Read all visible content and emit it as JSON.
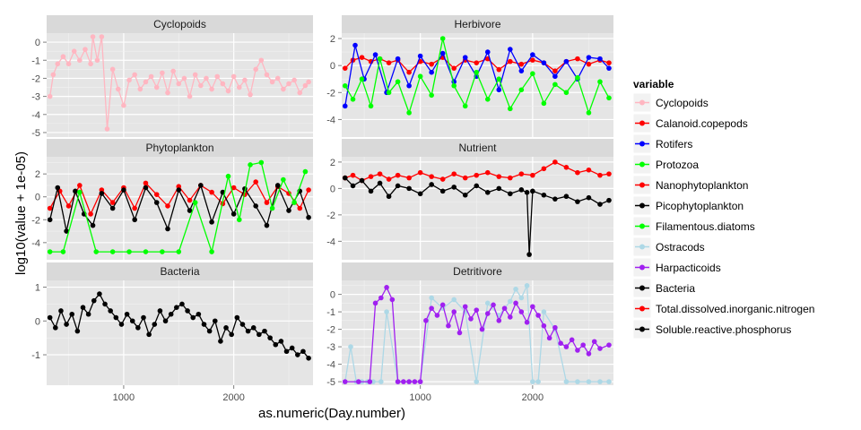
{
  "figure": {
    "xlabel": "as.numeric(Day.number)",
    "ylabel": "log10(value + 1e-05)",
    "legend_title": "variable"
  },
  "legend": [
    {
      "label": "Cyclopoids",
      "color": "#FFB6C1"
    },
    {
      "label": "Calanoid.copepods",
      "color": "#FF0000"
    },
    {
      "label": "Rotifers",
      "color": "#0000FF"
    },
    {
      "label": "Protozoa",
      "color": "#00FF00"
    },
    {
      "label": "Nanophytoplankton",
      "color": "#FF0000"
    },
    {
      "label": "Picophytoplankton",
      "color": "#000000"
    },
    {
      "label": "Filamentous.diatoms",
      "color": "#00FF00"
    },
    {
      "label": "Ostracods",
      "color": "#ADD8E6"
    },
    {
      "label": "Harpacticoids",
      "color": "#A020F0"
    },
    {
      "label": "Bacteria",
      "color": "#000000"
    },
    {
      "label": "Total.dissolved.inorganic.nitrogen",
      "color": "#FF0000"
    },
    {
      "label": "Soluble.reactive.phosphorus",
      "color": "#000000"
    }
  ],
  "chart_data": [
    {
      "type": "line",
      "facet": "Cyclopoids",
      "xlim": [
        300,
        2720
      ],
      "ylim": [
        -5.25,
        0.5
      ],
      "xticks": [
        1000,
        2000
      ],
      "yticks": [
        0,
        -1,
        -2,
        -3,
        -4,
        -5
      ],
      "series": [
        {
          "name": "Cyclopoids",
          "color": "#FFB6C1",
          "x": [
            330,
            360,
            400,
            450,
            500,
            550,
            600,
            650,
            700,
            720,
            760,
            800,
            850,
            900,
            950,
            1000,
            1050,
            1100,
            1150,
            1200,
            1250,
            1300,
            1350,
            1400,
            1450,
            1500,
            1550,
            1600,
            1650,
            1700,
            1750,
            1800,
            1850,
            1900,
            1950,
            2000,
            2050,
            2100,
            2150,
            2200,
            2250,
            2300,
            2350,
            2400,
            2450,
            2500,
            2550,
            2600,
            2650,
            2680
          ],
          "y": [
            -3.0,
            -1.8,
            -1.2,
            -0.8,
            -1.2,
            -0.5,
            -1.0,
            -0.4,
            -1.2,
            0.3,
            -1.0,
            0.3,
            -4.8,
            -1.5,
            -2.6,
            -3.5,
            -2.1,
            -1.8,
            -2.6,
            -2.2,
            -1.9,
            -2.5,
            -1.7,
            -2.8,
            -1.6,
            -2.3,
            -2.0,
            -3.0,
            -1.8,
            -2.4,
            -2.0,
            -2.6,
            -1.9,
            -2.3,
            -2.7,
            -1.9,
            -2.5,
            -2.1,
            -2.9,
            -1.5,
            -1.0,
            -1.8,
            -2.2,
            -2.0,
            -2.6,
            -2.3,
            -2.1,
            -2.8,
            -2.4,
            -2.2
          ]
        }
      ]
    },
    {
      "type": "line",
      "facet": "Herbivore",
      "xlim": [
        300,
        2720
      ],
      "ylim": [
        -5.3,
        2.4
      ],
      "xticks": [
        1000,
        2000
      ],
      "yticks": [
        2,
        0,
        -2,
        -4
      ],
      "series": [
        {
          "name": "Calanoid.copepods",
          "color": "#FF0000",
          "x": [
            330,
            400,
            480,
            560,
            640,
            720,
            800,
            900,
            1000,
            1100,
            1200,
            1300,
            1400,
            1500,
            1600,
            1700,
            1800,
            1900,
            2000,
            2100,
            2200,
            2300,
            2400,
            2500,
            2600,
            2680
          ],
          "y": [
            -0.2,
            0.4,
            0.6,
            0.3,
            0.5,
            0.2,
            0.4,
            -0.5,
            0.3,
            0.1,
            0.6,
            -0.2,
            0.4,
            0.2,
            0.5,
            -0.3,
            0.3,
            0.1,
            0.4,
            0.2,
            -0.4,
            0.3,
            0.5,
            0.1,
            0.4,
            0.2
          ]
        },
        {
          "name": "Rotifers",
          "color": "#0000FF",
          "x": [
            330,
            420,
            500,
            600,
            700,
            800,
            900,
            1000,
            1100,
            1200,
            1300,
            1400,
            1500,
            1600,
            1700,
            1800,
            1900,
            2000,
            2100,
            2200,
            2300,
            2400,
            2500,
            2600,
            2680
          ],
          "y": [
            -3.0,
            1.5,
            -1.0,
            0.8,
            -2.0,
            0.5,
            -1.5,
            0.7,
            -0.5,
            0.9,
            -1.2,
            0.6,
            -0.8,
            1.0,
            -1.8,
            1.2,
            -0.4,
            0.8,
            0.2,
            -0.8,
            0.3,
            -1.0,
            0.6,
            0.5,
            -0.2
          ]
        },
        {
          "name": "Protozoa",
          "color": "#00FF00",
          "x": [
            330,
            400,
            480,
            560,
            640,
            720,
            800,
            900,
            1000,
            1100,
            1200,
            1300,
            1400,
            1500,
            1600,
            1700,
            1800,
            1900,
            2000,
            2100,
            2200,
            2300,
            2400,
            2500,
            2600,
            2680
          ],
          "y": [
            -1.5,
            -2.5,
            -1.0,
            -3.0,
            0.5,
            -2.0,
            -1.2,
            -3.5,
            -0.8,
            -2.2,
            2.0,
            -1.5,
            -3.0,
            -0.5,
            -2.5,
            -1.0,
            -3.2,
            -1.8,
            -0.6,
            -2.8,
            -1.4,
            -2.0,
            -0.9,
            -3.5,
            -1.2,
            -2.4
          ]
        }
      ]
    },
    {
      "type": "line",
      "facet": "Phytoplankton",
      "xlim": [
        300,
        2720
      ],
      "ylim": [
        -5.5,
        3.5
      ],
      "xticks": [
        1000,
        2000
      ],
      "yticks": [
        2,
        0,
        -2,
        -4
      ],
      "series": [
        {
          "name": "Nanophytoplankton",
          "color": "#FF0000",
          "x": [
            330,
            420,
            500,
            600,
            700,
            800,
            900,
            1000,
            1100,
            1200,
            1300,
            1400,
            1500,
            1600,
            1700,
            1800,
            1900,
            2000,
            2100,
            2200,
            2300,
            2400,
            2500,
            2600,
            2680
          ],
          "y": [
            -1.0,
            0.5,
            -0.8,
            1.0,
            -1.5,
            0.6,
            -0.5,
            0.8,
            -1.0,
            1.2,
            0.2,
            -0.8,
            0.9,
            -0.3,
            1.0,
            0.4,
            -0.6,
            0.8,
            0.2,
            1.3,
            -0.5,
            0.9,
            0.3,
            -1.0,
            0.6
          ]
        },
        {
          "name": "Picophytoplankton",
          "color": "#000000",
          "x": [
            330,
            400,
            480,
            560,
            640,
            720,
            800,
            900,
            1000,
            1100,
            1200,
            1300,
            1400,
            1500,
            1600,
            1700,
            1800,
            1900,
            2000,
            2100,
            2200,
            2300,
            2400,
            2500,
            2600,
            2680
          ],
          "y": [
            -2.0,
            0.8,
            -3.0,
            0.5,
            -1.5,
            -2.5,
            0.3,
            -1.0,
            0.6,
            -2.0,
            0.8,
            -0.5,
            -2.8,
            0.6,
            -1.2,
            1.0,
            -2.2,
            0.4,
            -1.5,
            0.7,
            -0.8,
            -2.5,
            1.0,
            -1.2,
            0.5,
            -1.8
          ]
        },
        {
          "name": "Filamentous.diatoms",
          "color": "#00FF00",
          "x": [
            330,
            450,
            600,
            750,
            900,
            1050,
            1200,
            1350,
            1500,
            1650,
            1800,
            1950,
            2050,
            2150,
            2250,
            2350,
            2450,
            2550,
            2650
          ],
          "y": [
            -4.8,
            -4.8,
            0.4,
            -4.8,
            -4.8,
            -4.8,
            -4.8,
            -4.8,
            -4.8,
            -0.5,
            -4.8,
            1.8,
            -2.0,
            2.8,
            3.0,
            -1.0,
            1.5,
            -0.5,
            2.2
          ]
        }
      ]
    },
    {
      "type": "line",
      "facet": "Nutrient",
      "xlim": [
        300,
        2720
      ],
      "ylim": [
        -5.4,
        2.4
      ],
      "xticks": [
        1000,
        2000
      ],
      "yticks": [
        2,
        0,
        -2,
        -4
      ],
      "series": [
        {
          "name": "Total.dissolved.inorganic.nitrogen",
          "color": "#FF0000",
          "x": [
            330,
            400,
            480,
            560,
            640,
            720,
            800,
            900,
            1000,
            1100,
            1200,
            1300,
            1400,
            1500,
            1600,
            1700,
            1800,
            1900,
            2000,
            2100,
            2200,
            2300,
            2400,
            2500,
            2600,
            2680
          ],
          "y": [
            0.8,
            1.0,
            0.6,
            0.9,
            1.1,
            0.7,
            1.0,
            0.8,
            1.2,
            0.9,
            0.7,
            1.1,
            0.8,
            1.0,
            1.2,
            0.9,
            0.8,
            1.1,
            1.0,
            1.5,
            2.0,
            1.6,
            1.2,
            1.4,
            1.0,
            1.1
          ]
        },
        {
          "name": "Soluble.reactive.phosphorus",
          "color": "#000000",
          "x": [
            330,
            400,
            480,
            560,
            640,
            720,
            800,
            900,
            1000,
            1100,
            1200,
            1300,
            1400,
            1500,
            1600,
            1700,
            1800,
            1900,
            1950,
            1970,
            2000,
            2100,
            2200,
            2300,
            2400,
            2500,
            2600,
            2680
          ],
          "y": [
            0.8,
            0.2,
            0.6,
            -0.2,
            0.4,
            -0.6,
            0.2,
            0.0,
            -0.4,
            0.3,
            -0.2,
            0.1,
            -0.5,
            0.2,
            -0.3,
            0.0,
            -0.4,
            -0.1,
            -0.3,
            -5.0,
            -0.2,
            -0.5,
            -0.8,
            -0.6,
            -1.0,
            -0.7,
            -1.2,
            -0.9
          ]
        }
      ]
    },
    {
      "type": "line",
      "facet": "Bacteria",
      "xlim": [
        300,
        2720
      ],
      "ylim": [
        -1.9,
        1.2
      ],
      "xticks": [
        1000,
        2000
      ],
      "yticks": [
        1,
        0,
        -1
      ],
      "series": [
        {
          "name": "Bacteria",
          "color": "#000000",
          "x": [
            330,
            380,
            430,
            480,
            530,
            580,
            630,
            680,
            730,
            780,
            830,
            880,
            930,
            980,
            1030,
            1080,
            1130,
            1180,
            1230,
            1280,
            1330,
            1380,
            1430,
            1480,
            1530,
            1580,
            1630,
            1680,
            1730,
            1780,
            1830,
            1880,
            1930,
            1980,
            2030,
            2080,
            2130,
            2180,
            2230,
            2280,
            2330,
            2380,
            2430,
            2480,
            2530,
            2580,
            2630,
            2680
          ],
          "y": [
            0.1,
            -0.2,
            0.3,
            -0.1,
            0.2,
            -0.3,
            0.4,
            0.2,
            0.6,
            0.8,
            0.5,
            0.3,
            0.1,
            -0.1,
            0.2,
            0.0,
            -0.2,
            0.1,
            -0.4,
            -0.1,
            0.3,
            0.0,
            0.2,
            0.4,
            0.5,
            0.3,
            0.1,
            0.2,
            -0.1,
            -0.3,
            0.0,
            -0.6,
            -0.2,
            -0.4,
            0.1,
            -0.1,
            -0.3,
            -0.2,
            -0.4,
            -0.3,
            -0.5,
            -0.7,
            -0.6,
            -0.9,
            -0.8,
            -1.0,
            -0.9,
            -1.1
          ]
        }
      ]
    },
    {
      "type": "line",
      "facet": "Detritivore",
      "xlim": [
        300,
        2720
      ],
      "ylim": [
        -5.2,
        0.8
      ],
      "xticks": [
        1000,
        2000
      ],
      "yticks": [
        0,
        -1,
        -2,
        -3,
        -4,
        -5
      ],
      "series": [
        {
          "name": "Ostracods",
          "color": "#ADD8E6",
          "x": [
            330,
            380,
            430,
            480,
            530,
            580,
            650,
            700,
            800,
            900,
            1000,
            1100,
            1200,
            1300,
            1400,
            1500,
            1600,
            1700,
            1800,
            1850,
            1900,
            1950,
            2000,
            2050,
            2100,
            2200,
            2300,
            2400,
            2500,
            2600,
            2680
          ],
          "y": [
            -5.0,
            -3.0,
            -5.0,
            -5.0,
            -5.0,
            -5.0,
            -5.0,
            -1.0,
            -5.0,
            -5.0,
            -5.0,
            -0.2,
            -0.8,
            -0.3,
            -1.0,
            -5.0,
            -0.5,
            -1.2,
            -0.4,
            0.3,
            -0.2,
            0.5,
            -5.0,
            -5.0,
            -1.0,
            -2.0,
            -5.0,
            -5.0,
            -5.0,
            -5.0,
            -5.0
          ]
        },
        {
          "name": "Harpacticoids",
          "color": "#A020F0",
          "x": [
            330,
            450,
            550,
            600,
            650,
            700,
            750,
            800,
            850,
            900,
            950,
            1000,
            1050,
            1100,
            1150,
            1200,
            1250,
            1300,
            1350,
            1400,
            1450,
            1500,
            1550,
            1600,
            1650,
            1700,
            1750,
            1800,
            1850,
            1900,
            1950,
            2000,
            2050,
            2100,
            2150,
            2200,
            2250,
            2300,
            2350,
            2400,
            2450,
            2500,
            2550,
            2600,
            2680
          ],
          "y": [
            -5.0,
            -5.0,
            -5.0,
            -0.5,
            -0.2,
            0.4,
            -0.3,
            -5.0,
            -5.0,
            -5.0,
            -5.0,
            -5.0,
            -1.5,
            -0.8,
            -1.2,
            -0.6,
            -1.8,
            -1.0,
            -2.2,
            -0.7,
            -1.4,
            -0.9,
            -2.0,
            -1.1,
            -0.6,
            -1.5,
            -0.8,
            -1.3,
            -0.5,
            -1.0,
            -1.6,
            -0.7,
            -1.2,
            -1.8,
            -2.5,
            -1.9,
            -2.8,
            -3.0,
            -2.6,
            -3.2,
            -2.9,
            -3.4,
            -2.7,
            -3.1,
            -2.9
          ]
        }
      ]
    }
  ]
}
